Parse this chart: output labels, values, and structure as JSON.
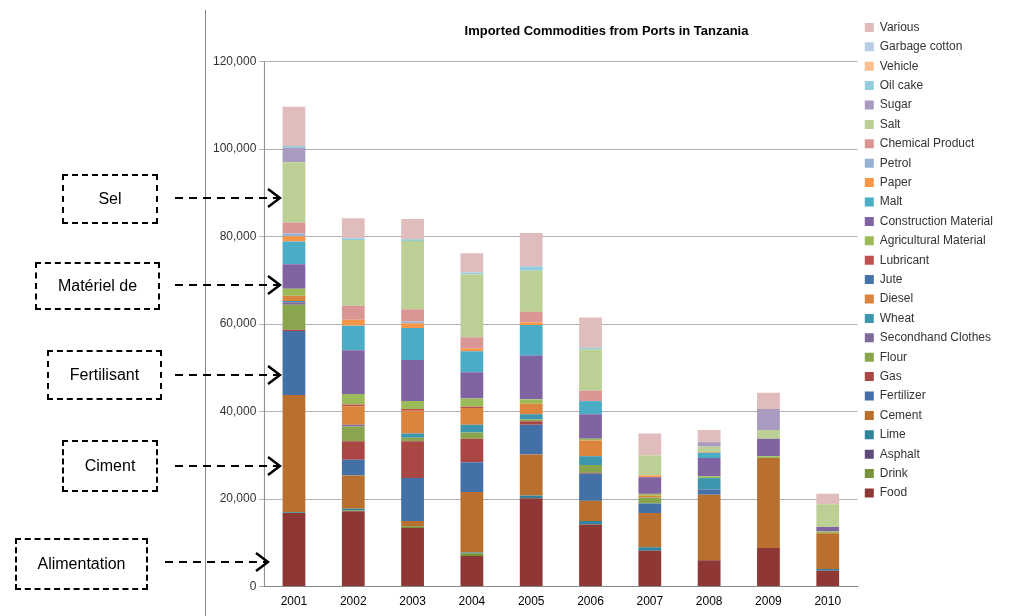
{
  "chart_data": {
    "type": "bar",
    "stacked": true,
    "title": "Imported Commodities from Ports in Tanzania",
    "categories": [
      "2001",
      "2002",
      "2003",
      "2004",
      "2005",
      "2006",
      "2007",
      "2008",
      "2009",
      "2010"
    ],
    "ylim": [
      0,
      120000
    ],
    "yticks": [
      {
        "value": 0,
        "label": "0"
      },
      {
        "value": 20000,
        "label": "20,000"
      },
      {
        "value": 40000,
        "label": "40,000"
      },
      {
        "value": 60000,
        "label": "60,000"
      },
      {
        "value": 80000,
        "label": "80,000"
      },
      {
        "value": 100000,
        "label": "100,000"
      },
      {
        "value": 120000,
        "label": "120,000"
      }
    ],
    "grid": "y",
    "legend": "right",
    "annotations": [
      "Sel",
      "Matériel de",
      "Fertilisant",
      "Ciment",
      "Alimentation"
    ],
    "series": [
      {
        "name": "Food",
        "color": "#8e3734",
        "values": [
          16800,
          17200,
          13400,
          7000,
          20200,
          14200,
          8200,
          6000,
          8800,
          3600
        ]
      },
      {
        "name": "Drink",
        "color": "#77933c",
        "values": [
          0,
          200,
          400,
          600,
          0,
          0,
          0,
          0,
          0,
          0
        ]
      },
      {
        "name": "Asphalt",
        "color": "#5f497a",
        "values": [
          0,
          0,
          0,
          0,
          0,
          0,
          0,
          0,
          0,
          0
        ]
      },
      {
        "name": "Lime",
        "color": "#31849b",
        "values": [
          200,
          400,
          0,
          200,
          600,
          800,
          800,
          0,
          0,
          400
        ]
      },
      {
        "name": "Cement",
        "color": "#b9702f",
        "values": [
          26800,
          7600,
          1200,
          13800,
          9400,
          4600,
          7800,
          15000,
          20600,
          8200
        ]
      },
      {
        "name": "Fertilizer",
        "color": "#4470a8",
        "values": [
          14600,
          3600,
          9800,
          6800,
          6800,
          6200,
          2200,
          1200,
          0,
          0
        ]
      },
      {
        "name": "Gas",
        "color": "#aa4643",
        "values": [
          300,
          4200,
          8400,
          5400,
          800,
          200,
          0,
          0,
          0,
          0
        ]
      },
      {
        "name": "Flour",
        "color": "#89a54e",
        "values": [
          5700,
          3400,
          800,
          1400,
          400,
          1800,
          1400,
          0,
          0,
          0
        ]
      },
      {
        "name": "Secondhand Clothes",
        "color": "#80699b",
        "values": [
          600,
          400,
          0,
          0,
          0,
          0,
          0,
          0,
          0,
          0
        ]
      },
      {
        "name": "Wheat",
        "color": "#3d96ae",
        "values": [
          300,
          0,
          1000,
          1800,
          1200,
          2000,
          0,
          2600,
          0,
          0
        ]
      },
      {
        "name": "Diesel",
        "color": "#db843d",
        "values": [
          1200,
          4200,
          5200,
          3800,
          2400,
          3600,
          400,
          0,
          0,
          0
        ]
      },
      {
        "name": "Jute",
        "color": "#4572a7",
        "values": [
          0,
          0,
          0,
          0,
          0,
          0,
          0,
          0,
          0,
          0
        ]
      },
      {
        "name": "Lubricant",
        "color": "#c0504d",
        "values": [
          0,
          400,
          400,
          300,
          0,
          0,
          0,
          0,
          0,
          0
        ]
      },
      {
        "name": "Agricultural Material",
        "color": "#9bbb59",
        "values": [
          1600,
          2400,
          1800,
          1900,
          1000,
          400,
          400,
          400,
          400,
          400
        ]
      },
      {
        "name": "Construction Material",
        "color": "#8064a2",
        "values": [
          5600,
          10000,
          9400,
          6000,
          10000,
          5600,
          3800,
          4200,
          4000,
          1000
        ]
      },
      {
        "name": "Malt",
        "color": "#4bacc6",
        "values": [
          5200,
          5600,
          7300,
          4800,
          7000,
          3000,
          0,
          1200,
          0,
          0
        ]
      },
      {
        "name": "Paper",
        "color": "#f79646",
        "values": [
          1200,
          1400,
          1100,
          600,
          600,
          0,
          400,
          200,
          0,
          0
        ]
      },
      {
        "name": "Petrol",
        "color": "#95b3d7",
        "values": [
          600,
          0,
          400,
          0,
          0,
          0,
          0,
          0,
          0,
          0
        ]
      },
      {
        "name": "Chemical Product",
        "color": "#d99694",
        "values": [
          2500,
          3200,
          2800,
          2600,
          2400,
          2400,
          0,
          0,
          0,
          0
        ]
      },
      {
        "name": "Salt",
        "color": "#bccf94",
        "values": [
          13800,
          15000,
          15600,
          14400,
          9400,
          9400,
          4600,
          1200,
          2000,
          5200
        ]
      },
      {
        "name": "Sugar",
        "color": "#a99bc0",
        "values": [
          3300,
          0,
          0,
          0,
          0,
          0,
          0,
          1000,
          4800,
          0
        ]
      },
      {
        "name": "Oil cake",
        "color": "#93cddd",
        "values": [
          400,
          400,
          400,
          400,
          1000,
          400,
          0,
          0,
          0,
          0
        ]
      },
      {
        "name": "Vehicle",
        "color": "#fac090",
        "values": [
          0,
          0,
          0,
          0,
          0,
          0,
          0,
          0,
          0,
          0
        ]
      },
      {
        "name": "Garbage cotton",
        "color": "#b9cde5",
        "values": [
          0,
          0,
          0,
          0,
          0,
          0,
          0,
          0,
          0,
          0
        ]
      },
      {
        "name": "Various",
        "color": "#e0bcbc",
        "values": [
          9000,
          4600,
          4600,
          4400,
          7600,
          6900,
          5000,
          2800,
          3700,
          2400
        ]
      }
    ]
  }
}
